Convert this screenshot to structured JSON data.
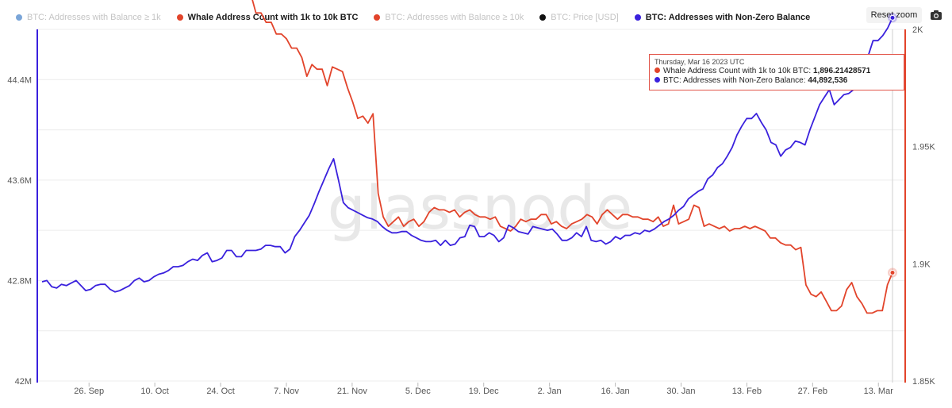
{
  "legend": [
    {
      "label": "BTC: Addresses with Balance ≥ 1k",
      "color": "#7aa5d8",
      "active": false
    },
    {
      "label": "Whale Address Count with 1k to 10k BTC",
      "color": "#e2442b",
      "active": true
    },
    {
      "label": "BTC: Addresses with Balance ≥ 10k",
      "color": "#e2442b",
      "active": false
    },
    {
      "label": "BTC: Price [USD]",
      "color": "#111111",
      "active": false
    },
    {
      "label": "BTC: Addresses with Non-Zero Balance",
      "color": "#3a21dd",
      "active": true
    }
  ],
  "toolbar": {
    "reset_label": "Reset zoom",
    "camera_icon": "camera-icon"
  },
  "watermark": "glassnode",
  "tooltip": {
    "date": "Thursday, Mar 16 2023 UTC",
    "rows": [
      {
        "label": "Whale Address Count with 1k to 10k BTC:",
        "value": "1,896.21428571",
        "color": "#e2442b"
      },
      {
        "label": "BTC: Addresses with Non-Zero Balance:",
        "value": "44,892,536",
        "color": "#3a21dd"
      }
    ]
  },
  "chart_data": {
    "type": "line",
    "x_range": [
      "2022-09-16",
      "2023-03-16"
    ],
    "x_ticks": [
      "26. Sep",
      "10. Oct",
      "24. Oct",
      "7. Nov",
      "21. Nov",
      "5. Dec",
      "19. Dec",
      "2. Jan",
      "16. Jan",
      "30. Jan",
      "13. Feb",
      "27. Feb",
      "13. Mar"
    ],
    "y_left": {
      "ticks": [
        "42M",
        "42.8M",
        "43.6M",
        "44.4M"
      ],
      "range": [
        42000000,
        44800000
      ],
      "color": "#3a21dd"
    },
    "y_right": {
      "ticks": [
        "1.85K",
        "1.9K",
        "1.95K",
        "2K"
      ],
      "range": [
        1850,
        2000
      ],
      "color": "#e2442b"
    },
    "series": [
      {
        "name": "Whale Address Count with 1k to 10k BTC",
        "axis": "right",
        "color": "#e2442b",
        "start": "2022-09-16",
        "values": [
          2026,
          2025,
          2025,
          2025,
          2023,
          2020,
          2018,
          2018,
          2020,
          2019,
          2018,
          2020,
          2019,
          2020,
          2019,
          2019,
          2016,
          2019,
          2018,
          2020,
          2019,
          2025,
          2022,
          2017,
          2020,
          2018,
          2018,
          2017,
          2019,
          2026,
          2026,
          2025,
          2025,
          2023,
          2025,
          2026,
          2024,
          2023,
          2023,
          2023,
          2022,
          2015,
          2007,
          2007,
          2003,
          2003,
          1998,
          1998,
          1996,
          1992,
          1992,
          1988,
          1980,
          1985,
          1983,
          1983,
          1976,
          1984,
          1983,
          1982,
          1975,
          1969,
          1962,
          1963,
          1960,
          1964,
          1930,
          1920,
          1916,
          1918,
          1920,
          1916,
          1918,
          1919,
          1916,
          1918,
          1922,
          1924,
          1923,
          1923,
          1922,
          1923,
          1920,
          1922,
          1923,
          1921,
          1920,
          1920,
          1919,
          1920,
          1916,
          1915,
          1914,
          1916,
          1919,
          1918,
          1919,
          1919,
          1921,
          1921,
          1917,
          1918,
          1916,
          1915,
          1917,
          1918,
          1919,
          1921,
          1920,
          1917,
          1921,
          1923,
          1921,
          1919,
          1921,
          1921,
          1920,
          1920,
          1919,
          1919,
          1918,
          1920,
          1916,
          1917,
          1925,
          1917,
          1918,
          1919,
          1925,
          1924,
          1916,
          1917,
          1916,
          1915,
          1916,
          1914,
          1915,
          1915,
          1916,
          1915,
          1916,
          1915,
          1914,
          1911,
          1911,
          1909,
          1908,
          1908,
          1906,
          1907,
          1891,
          1887,
          1886,
          1888,
          1884,
          1880,
          1880,
          1882,
          1889,
          1892,
          1886,
          1883,
          1879,
          1879,
          1880,
          1880,
          1891,
          1896.21
        ]
      },
      {
        "name": "BTC: Addresses with Non-Zero Balance",
        "axis": "left",
        "color": "#3a21dd",
        "start": "2022-09-16",
        "values": [
          42.79,
          42.8,
          42.75,
          42.74,
          42.77,
          42.76,
          42.78,
          42.8,
          42.76,
          42.72,
          42.73,
          42.76,
          42.77,
          42.77,
          42.73,
          42.71,
          42.72,
          42.74,
          42.76,
          42.8,
          42.82,
          42.79,
          42.8,
          42.83,
          42.85,
          42.86,
          42.88,
          42.91,
          42.91,
          42.92,
          42.95,
          42.97,
          42.96,
          43.0,
          43.02,
          42.95,
          42.96,
          42.98,
          43.04,
          43.04,
          42.99,
          42.99,
          43.04,
          43.04,
          43.04,
          43.05,
          43.08,
          43.08,
          43.07,
          43.07,
          43.02,
          43.05,
          43.15,
          43.2,
          43.26,
          43.32,
          43.41,
          43.51,
          43.6,
          43.69,
          43.77,
          43.6,
          43.42,
          43.38,
          43.36,
          43.34,
          43.32,
          43.3,
          43.29,
          43.27,
          43.23,
          43.2,
          43.18,
          43.18,
          43.19,
          43.19,
          43.16,
          43.14,
          43.12,
          43.11,
          43.11,
          43.12,
          43.08,
          43.12,
          43.08,
          43.09,
          43.14,
          43.15,
          43.24,
          43.23,
          43.15,
          43.15,
          43.18,
          43.16,
          43.11,
          43.14,
          43.24,
          43.22,
          43.19,
          43.18,
          43.17,
          43.23,
          43.22,
          43.21,
          43.2,
          43.21,
          43.17,
          43.12,
          43.12,
          43.14,
          43.18,
          43.15,
          43.23,
          43.12,
          43.11,
          43.12,
          43.09,
          43.11,
          43.15,
          43.13,
          43.16,
          43.16,
          43.18,
          43.17,
          43.2,
          43.19,
          43.21,
          43.24,
          43.27,
          43.29,
          43.32,
          43.36,
          43.39,
          43.45,
          43.48,
          43.51,
          43.53,
          43.61,
          43.64,
          43.7,
          43.73,
          43.79,
          43.86,
          43.96,
          44.03,
          44.09,
          44.09,
          44.13,
          44.06,
          44.0,
          43.9,
          43.88,
          43.79,
          43.84,
          43.86,
          43.91,
          43.9,
          43.88,
          44.0,
          44.1,
          44.2,
          44.26,
          44.32,
          44.2,
          44.24,
          44.28,
          44.29,
          44.32,
          44.41,
          44.49,
          44.59,
          44.71,
          44.71,
          44.75,
          44.81,
          44.8925
        ]
      }
    ]
  }
}
